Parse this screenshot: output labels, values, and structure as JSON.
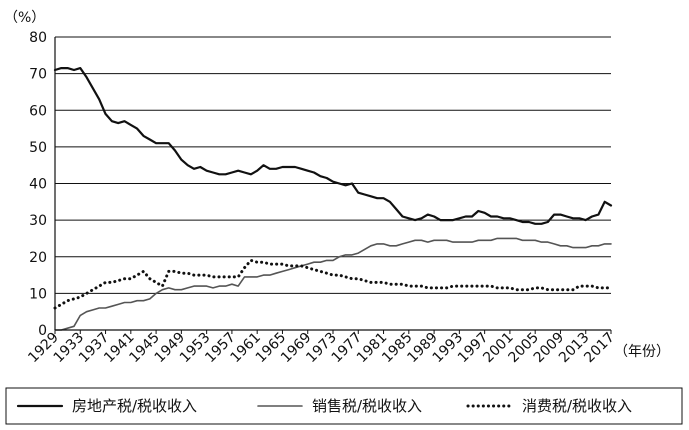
{
  "chart_data": {
    "type": "line",
    "ylabel": "（%）",
    "xlabel": "（年份）",
    "ylim": [
      0,
      80
    ],
    "yticks": [
      0,
      10,
      20,
      30,
      40,
      50,
      60,
      70,
      80
    ],
    "xlim": [
      1929,
      2017
    ],
    "xtick_labels": [
      "1929",
      "1933",
      "1937",
      "1941",
      "1945",
      "1949",
      "1953",
      "1957",
      "1961",
      "1965",
      "1969",
      "1973",
      "1977",
      "1981",
      "1985",
      "1989",
      "1993",
      "1997",
      "2001",
      "2005",
      "2009",
      "2013",
      "2017"
    ],
    "grid": "horizontal",
    "legend_position": "bottom",
    "x": [
      1929,
      1930,
      1931,
      1932,
      1933,
      1934,
      1935,
      1936,
      1937,
      1938,
      1939,
      1940,
      1941,
      1942,
      1943,
      1944,
      1945,
      1946,
      1947,
      1948,
      1949,
      1950,
      1951,
      1952,
      1953,
      1954,
      1955,
      1956,
      1957,
      1958,
      1959,
      1960,
      1961,
      1962,
      1963,
      1964,
      1965,
      1966,
      1967,
      1968,
      1969,
      1970,
      1971,
      1972,
      1973,
      1974,
      1975,
      1976,
      1977,
      1978,
      1979,
      1980,
      1981,
      1982,
      1983,
      1984,
      1985,
      1986,
      1987,
      1988,
      1989,
      1990,
      1991,
      1992,
      1993,
      1994,
      1995,
      1996,
      1997,
      1998,
      1999,
      2000,
      2001,
      2002,
      2003,
      2004,
      2005,
      2006,
      2007,
      2008,
      2009,
      2010,
      2011,
      2012,
      2013,
      2014,
      2015,
      2016,
      2017
    ],
    "series": [
      {
        "name": "房地产税/税收收入",
        "style": "solid",
        "color": "#111111",
        "values": [
          71,
          71.5,
          71.5,
          71,
          71.5,
          69,
          66,
          63,
          59,
          57,
          56.5,
          57,
          56,
          55,
          53,
          52,
          51,
          51,
          51,
          49,
          46.5,
          45,
          44,
          44.5,
          43.5,
          43,
          42.5,
          42.5,
          43,
          43.5,
          43,
          42.5,
          43.5,
          45,
          44,
          44,
          44.5,
          44.5,
          44.5,
          44,
          43.5,
          43,
          42,
          41.5,
          40.5,
          40,
          39.5,
          40,
          37.5,
          37,
          36.5,
          36,
          36,
          35,
          33,
          31,
          30.5,
          30,
          30.5,
          31.5,
          31,
          30,
          30,
          30,
          30.5,
          31,
          31,
          32.5,
          32,
          31,
          31,
          30.5,
          30.5,
          30,
          29.5,
          29.5,
          29,
          29,
          29.5,
          31.5,
          31.5,
          31,
          30.5,
          30.5,
          30,
          31,
          31.5,
          35,
          34
        ]
      },
      {
        "name": "销售税/税收收入",
        "style": "thin",
        "color": "#555555",
        "values": [
          0,
          0,
          0.5,
          1,
          4,
          5,
          5.5,
          6,
          6,
          6.5,
          7,
          7.5,
          7.5,
          8,
          8,
          8.5,
          10,
          11,
          11.5,
          11,
          11,
          11.5,
          12,
          12,
          12,
          11.5,
          12,
          12,
          12.5,
          12,
          14.5,
          14.5,
          14.5,
          15,
          15,
          15.5,
          16,
          16.5,
          17,
          17.5,
          18,
          18.5,
          18.5,
          19,
          19,
          20,
          20.5,
          20.5,
          21,
          22,
          23,
          23.5,
          23.5,
          23,
          23,
          23.5,
          24,
          24.5,
          24.5,
          24,
          24.5,
          24.5,
          24.5,
          24,
          24,
          24,
          24,
          24.5,
          24.5,
          24.5,
          25,
          25,
          25,
          25,
          24.5,
          24.5,
          24.5,
          24,
          24,
          23.5,
          23,
          23,
          22.5,
          22.5,
          22.5,
          23,
          23,
          23.5,
          23.5
        ]
      },
      {
        "name": "消费税/税收收入",
        "style": "dotted",
        "color": "#111111",
        "values": [
          6,
          7,
          8,
          8.5,
          9,
          10,
          11,
          12,
          13,
          13,
          13.5,
          14,
          14,
          15,
          16,
          14,
          13,
          12,
          16,
          16,
          15.5,
          15.5,
          15,
          15,
          15,
          14.5,
          14.5,
          14.5,
          14.5,
          14.5,
          17,
          19,
          18.5,
          18.5,
          18,
          18,
          18,
          17.5,
          17.5,
          17.5,
          17,
          16.5,
          16,
          15.5,
          15,
          15,
          14.5,
          14,
          14,
          13.5,
          13,
          13,
          13,
          12.5,
          12.5,
          12.5,
          12,
          12,
          12,
          11.5,
          11.5,
          11.5,
          11.5,
          12,
          12,
          12,
          12,
          12,
          12,
          12,
          11.5,
          11.5,
          11.5,
          11,
          11,
          11,
          11.5,
          11.5,
          11,
          11,
          11,
          11,
          11,
          12,
          12,
          12,
          11.5,
          11.5,
          11.5
        ]
      }
    ]
  }
}
